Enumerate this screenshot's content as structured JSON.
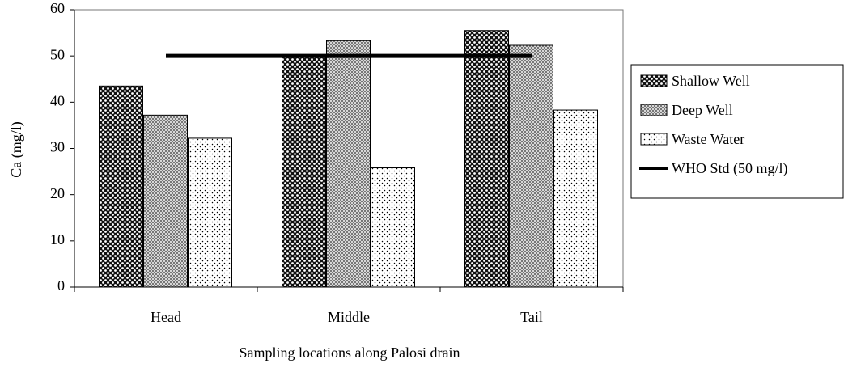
{
  "chart_data": {
    "type": "bar",
    "categories": [
      "Head",
      "Middle",
      "Tail"
    ],
    "series": [
      {
        "name": "Shallow Well",
        "color": "#111111",
        "values": [
          43.5,
          50.3,
          55.5
        ]
      },
      {
        "name": "Deep Well",
        "color": "#777777",
        "values": [
          37.2,
          53.3,
          52.3
        ]
      },
      {
        "name": "Waste Water",
        "color": "#ffffff",
        "values": [
          32.2,
          25.8,
          38.3
        ]
      },
      {
        "name": "WHO Std (50 mg/l)",
        "color": "#000000",
        "type": "line",
        "values": [
          50,
          50,
          50
        ]
      }
    ],
    "ylim": [
      0,
      60
    ],
    "yticks": [
      0,
      10,
      20,
      30,
      40,
      50,
      60
    ],
    "y_label": "Ca (mg/l)",
    "x_label": "Sampling locations along Palosi drain",
    "legend": "right"
  }
}
